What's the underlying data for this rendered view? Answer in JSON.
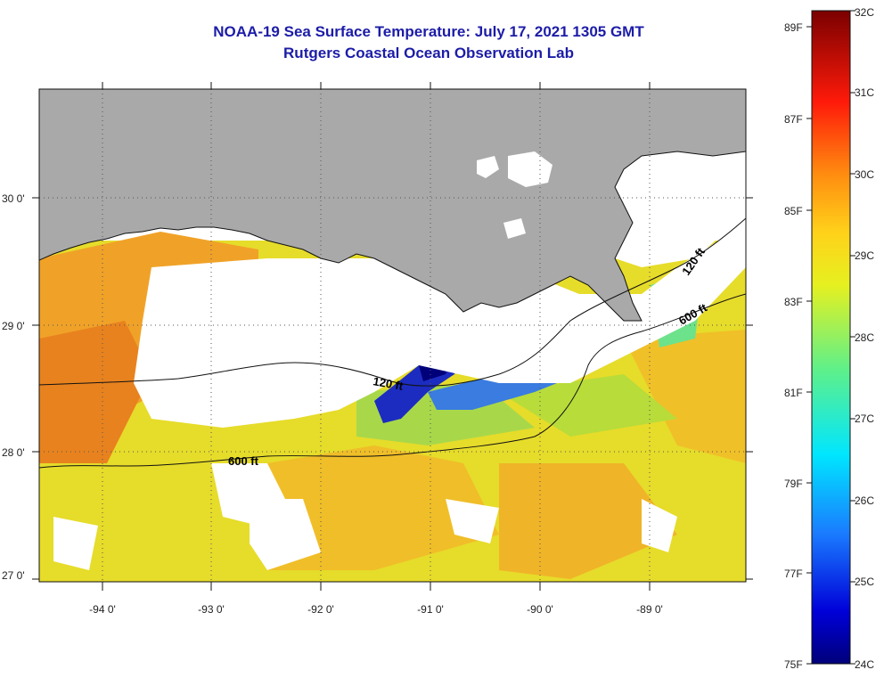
{
  "header": {
    "title": "NOAA-19 Sea Surface Temperature:  July 17, 2021 1305 GMT",
    "subtitle": "Rutgers Coastal Ocean Observation Lab"
  },
  "map": {
    "lon_range": [
      -94.5,
      -88.3
    ],
    "lat_range": [
      26.95,
      30.85
    ],
    "lon_ticks": [
      "-94 0'",
      "-93 0'",
      "-92 0'",
      "-91 0'",
      "-90 0'",
      "-89 0'"
    ],
    "lat_ticks": [
      "30 0'",
      "29 0'",
      "28 0'",
      "27 0'"
    ],
    "contours": {
      "label_120_east": "120 ft",
      "label_600_east": "600 ft",
      "label_120_central": "120 ft",
      "label_600_west": "600 ft"
    },
    "colors": {
      "land": "#a9a9a9",
      "cloud": "#ffffff",
      "warm": "#f5a623",
      "mid": "#e8e02a",
      "cool": "#7cd85a",
      "cold": "#1c1cb4"
    }
  },
  "colorbar": {
    "fahrenheit_labels": [
      "89F",
      "87F",
      "85F",
      "83F",
      "81F",
      "79F",
      "77F",
      "75F"
    ],
    "celsius_labels": [
      "32C",
      "31C",
      "30C",
      "29C",
      "28C",
      "27C",
      "26C",
      "25C",
      "24C"
    ]
  }
}
